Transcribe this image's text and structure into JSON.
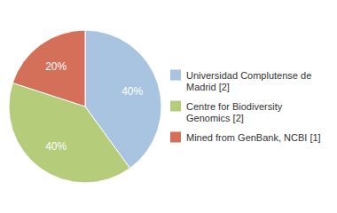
{
  "chart_data": {
    "type": "pie",
    "categories": [
      "Universidad Complutense de\nMadrid [2]",
      "Centre for Biodiversity\nGenomics [2]",
      "Mined from GenBank, NCBI [1]"
    ],
    "values": [
      40,
      40,
      20
    ],
    "value_labels": [
      "40%",
      "40%",
      "20%"
    ],
    "colors": [
      "#a8c4e0",
      "#b5cc7a",
      "#d4705a"
    ],
    "data_labels": true,
    "legend": "right"
  }
}
